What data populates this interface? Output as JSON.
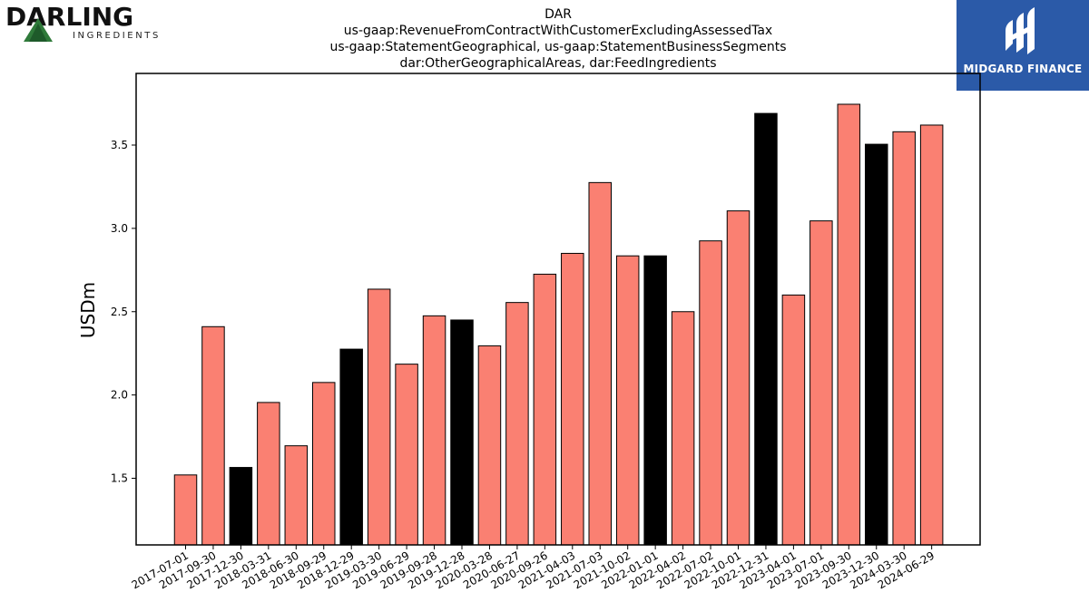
{
  "logos": {
    "left": {
      "wordmark": "DARLING",
      "sub": "INGREDIENTS"
    },
    "right": {
      "name": "MIDGARD FINANCE",
      "color": "#2b5aa8"
    }
  },
  "chart_data": {
    "type": "bar",
    "title_lines": [
      "DAR",
      "us-gaap:RevenueFromContractWithCustomerExcludingAssessedTax",
      "us-gaap:StatementGeographical, us-gaap:StatementBusinessSegments",
      "dar:OtherGeographicalAreas, dar:FeedIngredients"
    ],
    "xlabel": "",
    "ylabel": "USDm",
    "ylim": [
      1.1,
      3.93
    ],
    "yticks": [
      "1.5",
      "2.0",
      "2.5",
      "3.0",
      "3.5"
    ],
    "grid": false,
    "colors": {
      "default": "#fa8072",
      "highlight": "#000000",
      "edge": "#000000"
    },
    "categories": [
      "2017-07-01",
      "2017-09-30",
      "2017-12-30",
      "2018-03-31",
      "2018-06-30",
      "2018-09-29",
      "2018-12-29",
      "2019-03-30",
      "2019-06-29",
      "2019-09-28",
      "2019-12-28",
      "2020-03-28",
      "2020-06-27",
      "2020-09-26",
      "2021-04-03",
      "2021-07-03",
      "2021-10-02",
      "2022-01-01",
      "2022-04-02",
      "2022-07-02",
      "2022-10-01",
      "2022-12-31",
      "2023-04-01",
      "2023-07-01",
      "2023-09-30",
      "2023-12-30",
      "2024-03-30",
      "2024-06-29"
    ],
    "values": [
      1.52,
      2.41,
      1.565,
      1.955,
      1.695,
      2.075,
      2.275,
      2.635,
      2.185,
      2.475,
      2.45,
      2.295,
      2.555,
      2.725,
      2.85,
      3.275,
      2.835,
      2.835,
      2.5,
      2.925,
      3.105,
      3.69,
      2.6,
      3.045,
      3.745,
      3.505,
      3.58,
      3.62
    ],
    "highlight": [
      false,
      false,
      true,
      false,
      false,
      false,
      true,
      false,
      false,
      false,
      true,
      false,
      false,
      false,
      false,
      false,
      false,
      true,
      false,
      false,
      false,
      true,
      false,
      false,
      false,
      true,
      false,
      false
    ]
  }
}
